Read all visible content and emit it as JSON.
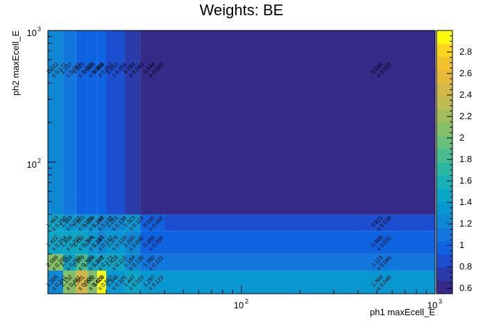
{
  "chart_data": {
    "type": "heatmap",
    "title": "Weights: BE",
    "xlabel": "ph1 maxEcell_E",
    "ylabel": "ph2 maxEcell_E",
    "x_scale": "log",
    "y_scale": "log",
    "xlim": [
      10,
      1000
    ],
    "ylim": [
      10,
      1000
    ],
    "x_edges": [
      10,
      12,
      14,
      16,
      18,
      20,
      25,
      30,
      40,
      1000
    ],
    "y_edges": [
      10,
      15,
      20,
      30,
      40,
      1000
    ],
    "x_major_ticks": [
      {
        "value": 100,
        "base": "10",
        "exp": "2"
      },
      {
        "value": 1000,
        "base": "10",
        "exp": "3"
      }
    ],
    "y_major_ticks": [
      {
        "value": 100,
        "base": "10",
        "exp": "2"
      },
      {
        "value": 1000,
        "base": "10",
        "exp": "3"
      }
    ],
    "colorbar": {
      "min": 0.55,
      "max": 3.0,
      "ticks": [
        "0.6",
        "0.8",
        "1",
        "1.2",
        "1.4",
        "1.6",
        "1.8",
        "2",
        "2.2",
        "2.4",
        "2.6",
        "2.8"
      ],
      "tick_values": [
        0.6,
        0.8,
        1.0,
        1.2,
        1.4,
        1.6,
        1.8,
        2.0,
        2.2,
        2.4,
        2.6,
        2.8
      ],
      "palette": [
        "#352a87",
        "#2a3ca8",
        "#1c4fd0",
        "#0d63e0",
        "#1277dc",
        "#0e88d3",
        "#0898d1",
        "#0ba5c6",
        "#19b0b6",
        "#2cb7a3",
        "#4abd90",
        "#68bf7c",
        "#86bf6a",
        "#a3bd5c",
        "#bdbb52",
        "#d3b748",
        "#e6b93b",
        "#f4c12f",
        "#fad522",
        "#f9fb0e"
      ]
    },
    "cells": [
      [
        {
          "v": 1.205,
          "e": "0.241"
        },
        {
          "v": 2.132,
          "e": "0.481"
        },
        {
          "v": 2.501,
          "e": "0.506"
        },
        {
          "v": 2.062,
          "e": "0.423"
        },
        {
          "v": 3.0,
          "e": "0.587"
        },
        {
          "v": 1.348,
          "e": "0.325"
        },
        {
          "v": 1.447,
          "e": "0.219"
        },
        {
          "v": 1.297,
          "e": "0.123"
        },
        {
          "v": 1.368,
          "e": "0.046"
        }
      ],
      [
        {
          "v": 2.088,
          "e": "0.299"
        },
        {
          "v": 1.489,
          "e": "0.259"
        },
        {
          "v": 1.809,
          "e": "0.320"
        },
        {
          "v": 1.509,
          "e": "0.214"
        },
        {
          "v": 1.472,
          "e": "0.173"
        },
        {
          "v": 1.426,
          "e": "0.112"
        },
        {
          "v": 1.184,
          "e": "0.130"
        },
        {
          "v": 1.092,
          "e": "0.122"
        },
        {
          "v": 1.115,
          "e": "0.040"
        }
      ],
      [
        {
          "v": 1.422,
          "e": "0.254"
        },
        {
          "v": 1.409,
          "e": "0.207"
        },
        {
          "v": 1.43,
          "e": "0.204"
        },
        {
          "v": 1.374,
          "e": "0.137"
        },
        {
          "v": 1.264,
          "e": "0.142"
        },
        {
          "v": 1.378,
          "e": "0.129"
        },
        {
          "v": 1.26,
          "e": "0.090"
        },
        {
          "v": 0.95,
          "e": "0.060"
        },
        {
          "v": 0.968,
          "e": "0.031"
        }
      ],
      [
        {
          "v": 1.463,
          "e": "0.250"
        },
        {
          "v": 1.389,
          "e": "0.222"
        },
        {
          "v": 1.353,
          "e": "0.181"
        },
        {
          "v": 1.288,
          "e": "0.144"
        },
        {
          "v": 1.232,
          "e": "0.138"
        },
        {
          "v": 1.201,
          "e": "0.138"
        },
        {
          "v": 1.323,
          "e": "0.119"
        },
        {
          "v": 0.93,
          "e": "0.065"
        },
        {
          "v": 0.821,
          "e": "0.039"
        }
      ],
      [
        {
          "v": 1.222,
          "e": "0.171"
        },
        {
          "v": 1.137,
          "e": "0.083"
        },
        {
          "v": 0.923,
          "e": "0.089"
        },
        {
          "v": 0.983,
          "e": "0.084"
        },
        {
          "v": 0.958,
          "e": "0.097"
        },
        {
          "v": 0.852,
          "e": "0.056"
        },
        {
          "v": 0.784,
          "e": "0.040"
        },
        {
          "v": 0.544,
          "e": "0.020"
        },
        {
          "v": 0.544,
          "e": "0.020"
        }
      ]
    ]
  }
}
